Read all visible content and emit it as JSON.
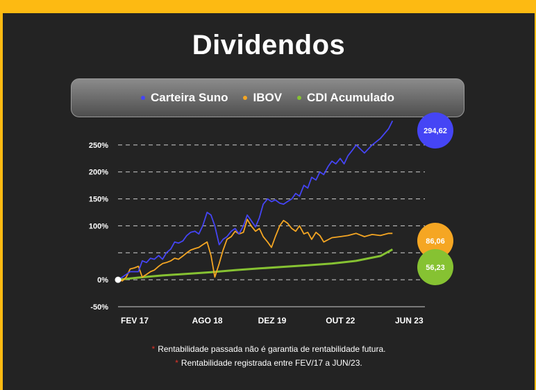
{
  "title": "Dividendos",
  "legend": [
    {
      "label": "Carteira Suno",
      "color": "#4545f5"
    },
    {
      "label": "IBOV",
      "color": "#f5a623"
    },
    {
      "label": "CDI Acumulado",
      "color": "#86c232"
    }
  ],
  "notes": [
    "Rentabilidade passada não é garantia de rentabilidade futura.",
    "Rentabilidade registrada entre FEV/17 a JUN/23."
  ],
  "note_marker": "*",
  "colors": {
    "background": "#232323",
    "border": "#fdba12",
    "grid": "#cfcfcf"
  },
  "chart_data": {
    "type": "line",
    "title": "Dividendos",
    "xlabel": "",
    "ylabel": "",
    "ylim": [
      -50,
      300
    ],
    "y_ticks": [
      -50,
      0,
      50,
      100,
      150,
      200,
      250
    ],
    "y_tick_labels": [
      "-50%",
      "0%",
      "",
      "100%",
      "150%",
      "200%",
      "250%"
    ],
    "x_range": [
      2017.08,
      2023.42
    ],
    "x_ticks": [
      {
        "x": 2017.08,
        "label": "FEV 17"
      },
      {
        "x": 2018.58,
        "label": "AGO 18"
      },
      {
        "x": 2019.92,
        "label": "DEZ 19"
      },
      {
        "x": 2021.33,
        "label": "OUT 22"
      },
      {
        "x": 2022.75,
        "label": "JUN 23"
      }
    ],
    "grid": true,
    "legend_position": "top",
    "end_labels": [
      "294,62",
      "86,06",
      "56,23"
    ],
    "series": [
      {
        "name": "Carteira Suno",
        "color": "#4545f5",
        "end_value": 294.62,
        "points": [
          [
            2017.08,
            0
          ],
          [
            2017.17,
            5
          ],
          [
            2017.25,
            10
          ],
          [
            2017.33,
            15
          ],
          [
            2017.42,
            15
          ],
          [
            2017.5,
            15
          ],
          [
            2017.58,
            35
          ],
          [
            2017.67,
            32
          ],
          [
            2017.75,
            40
          ],
          [
            2017.83,
            38
          ],
          [
            2017.92,
            45
          ],
          [
            2018.0,
            38
          ],
          [
            2018.08,
            50
          ],
          [
            2018.17,
            57
          ],
          [
            2018.25,
            70
          ],
          [
            2018.33,
            68
          ],
          [
            2018.42,
            72
          ],
          [
            2018.5,
            82
          ],
          [
            2018.58,
            88
          ],
          [
            2018.67,
            90
          ],
          [
            2018.75,
            85
          ],
          [
            2018.83,
            100
          ],
          [
            2018.92,
            125
          ],
          [
            2019.0,
            120
          ],
          [
            2019.08,
            100
          ],
          [
            2019.17,
            65
          ],
          [
            2019.25,
            75
          ],
          [
            2019.33,
            80
          ],
          [
            2019.42,
            90
          ],
          [
            2019.5,
            95
          ],
          [
            2019.58,
            85
          ],
          [
            2019.67,
            100
          ],
          [
            2019.75,
            120
          ],
          [
            2019.83,
            110
          ],
          [
            2019.92,
            98
          ],
          [
            2020.0,
            115
          ],
          [
            2020.08,
            140
          ],
          [
            2020.17,
            150
          ],
          [
            2020.25,
            145
          ],
          [
            2020.33,
            148
          ],
          [
            2020.42,
            142
          ],
          [
            2020.5,
            140
          ],
          [
            2020.58,
            145
          ],
          [
            2020.67,
            150
          ],
          [
            2020.75,
            160
          ],
          [
            2020.83,
            155
          ],
          [
            2020.92,
            175
          ],
          [
            2021.0,
            170
          ],
          [
            2021.08,
            190
          ],
          [
            2021.17,
            185
          ],
          [
            2021.25,
            200
          ],
          [
            2021.33,
            195
          ],
          [
            2021.42,
            210
          ],
          [
            2021.5,
            220
          ],
          [
            2021.58,
            215
          ],
          [
            2021.67,
            225
          ],
          [
            2021.75,
            215
          ],
          [
            2021.83,
            230
          ],
          [
            2021.92,
            240
          ],
          [
            2022.0,
            250
          ],
          [
            2022.17,
            235
          ],
          [
            2022.33,
            250
          ],
          [
            2022.5,
            262
          ],
          [
            2022.67,
            280
          ],
          [
            2022.75,
            294.62
          ]
        ]
      },
      {
        "name": "IBOV",
        "color": "#f5a623",
        "end_value": 86.06,
        "points": [
          [
            2017.08,
            0
          ],
          [
            2017.17,
            -2
          ],
          [
            2017.25,
            5
          ],
          [
            2017.33,
            20
          ],
          [
            2017.42,
            22
          ],
          [
            2017.5,
            25
          ],
          [
            2017.58,
            5
          ],
          [
            2017.67,
            10
          ],
          [
            2017.75,
            15
          ],
          [
            2017.83,
            18
          ],
          [
            2017.92,
            25
          ],
          [
            2018.0,
            30
          ],
          [
            2018.08,
            32
          ],
          [
            2018.17,
            35
          ],
          [
            2018.25,
            40
          ],
          [
            2018.33,
            38
          ],
          [
            2018.42,
            44
          ],
          [
            2018.5,
            50
          ],
          [
            2018.58,
            55
          ],
          [
            2018.67,
            58
          ],
          [
            2018.75,
            60
          ],
          [
            2018.83,
            65
          ],
          [
            2018.92,
            70
          ],
          [
            2019.0,
            45
          ],
          [
            2019.08,
            5
          ],
          [
            2019.17,
            30
          ],
          [
            2019.25,
            55
          ],
          [
            2019.33,
            75
          ],
          [
            2019.42,
            80
          ],
          [
            2019.5,
            90
          ],
          [
            2019.58,
            85
          ],
          [
            2019.67,
            88
          ],
          [
            2019.75,
            112
          ],
          [
            2019.83,
            100
          ],
          [
            2019.92,
            90
          ],
          [
            2020.0,
            95
          ],
          [
            2020.08,
            80
          ],
          [
            2020.17,
            70
          ],
          [
            2020.25,
            60
          ],
          [
            2020.33,
            80
          ],
          [
            2020.42,
            100
          ],
          [
            2020.5,
            110
          ],
          [
            2020.58,
            105
          ],
          [
            2020.67,
            95
          ],
          [
            2020.75,
            90
          ],
          [
            2020.83,
            100
          ],
          [
            2020.92,
            85
          ],
          [
            2021.0,
            88
          ],
          [
            2021.08,
            75
          ],
          [
            2021.17,
            88
          ],
          [
            2021.25,
            82
          ],
          [
            2021.33,
            70
          ],
          [
            2021.5,
            78
          ],
          [
            2021.67,
            80
          ],
          [
            2021.83,
            82
          ],
          [
            2022.0,
            86
          ],
          [
            2022.17,
            80
          ],
          [
            2022.33,
            84
          ],
          [
            2022.5,
            82
          ],
          [
            2022.67,
            86.06
          ],
          [
            2022.75,
            86.06
          ]
        ]
      },
      {
        "name": "CDI Acumulado",
        "color": "#86c232",
        "end_value": 56.23,
        "points": [
          [
            2017.08,
            0
          ],
          [
            2017.5,
            4
          ],
          [
            2018.0,
            8
          ],
          [
            2018.5,
            11
          ],
          [
            2019.0,
            14
          ],
          [
            2019.5,
            18
          ],
          [
            2020.0,
            21
          ],
          [
            2020.5,
            24
          ],
          [
            2021.0,
            27
          ],
          [
            2021.5,
            30
          ],
          [
            2022.0,
            35
          ],
          [
            2022.5,
            44
          ],
          [
            2022.75,
            56.23
          ]
        ]
      }
    ]
  }
}
